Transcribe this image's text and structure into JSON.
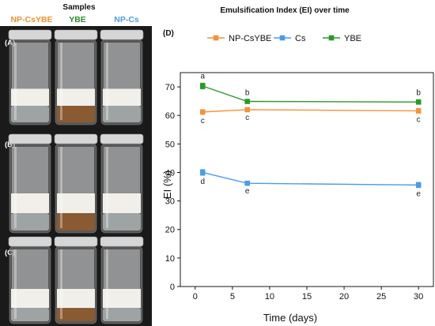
{
  "samples_panel": {
    "title": "Samples",
    "columns": [
      {
        "label": "NP-CsYBE",
        "color": "#E8932E"
      },
      {
        "label": "YBE",
        "color": "#2E8B2E"
      },
      {
        "label": "NP-Cs",
        "color": "#4F9BE0"
      }
    ],
    "rows": [
      "(A)",
      "(B)",
      "(C)"
    ]
  },
  "chart_panel": {
    "panel_label": "(D)",
    "title": "Emulsification Index (EI) over time"
  },
  "chart_data": {
    "type": "line",
    "title": "Emulsification Index (EI) over time",
    "xlabel": "Time (days)",
    "ylabel": "EI (%)",
    "xlim": [
      -2,
      32
    ],
    "ylim": [
      0,
      75
    ],
    "xticks": [
      0,
      5,
      10,
      15,
      20,
      25,
      30
    ],
    "yticks": [
      0,
      10,
      20,
      30,
      40,
      50,
      60,
      70
    ],
    "legend_position": "top",
    "grid": false,
    "x": [
      1,
      7,
      30
    ],
    "series": [
      {
        "name": "NP-CsYBE",
        "color": "#F5913A",
        "values": [
          61.2,
          62.0,
          61.6
        ],
        "errors": [
          0.8,
          0.6,
          0.8
        ],
        "labels": [
          "c",
          "c",
          "c"
        ],
        "label_position": "below"
      },
      {
        "name": "Cs",
        "color": "#4A9CE8",
        "values": [
          40.0,
          36.2,
          35.6
        ],
        "errors": [
          1.0,
          0.5,
          0.9
        ],
        "labels": [
          "d",
          "e",
          "e"
        ],
        "label_position": "below"
      },
      {
        "name": "YBE",
        "color": "#2A9A2A",
        "values": [
          70.3,
          64.9,
          64.7
        ],
        "errors": [
          1.0,
          0.6,
          0.8
        ],
        "labels": [
          "a",
          "b",
          "b"
        ],
        "label_position": "above"
      }
    ]
  }
}
